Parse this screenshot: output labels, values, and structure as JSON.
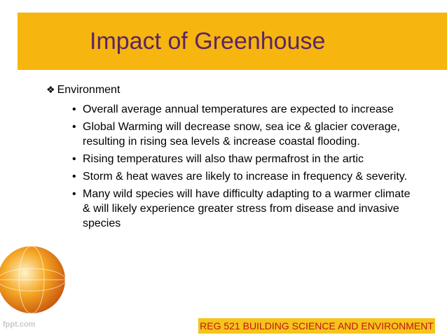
{
  "header": {
    "title": "Impact of Greenhouse"
  },
  "content": {
    "heading": "Environment",
    "bullets": [
      "Overall average annual temperatures are expected to increase",
      "Global Warming will decrease snow, sea ice & glacier coverage, resulting in rising sea levels & increase coastal flooding.",
      "Rising temperatures will also thaw permafrost in the artic",
      "Storm & heat waves are likely to increase in frequency & severity.",
      "Many wild species will have difficulty adapting to a warmer climate & will likely experience greater stress from disease and invasive species"
    ]
  },
  "footer": {
    "text": "REG 521 BUILDING SCIENCE AND ENVIRONMENT",
    "watermark": "fppt.com"
  }
}
